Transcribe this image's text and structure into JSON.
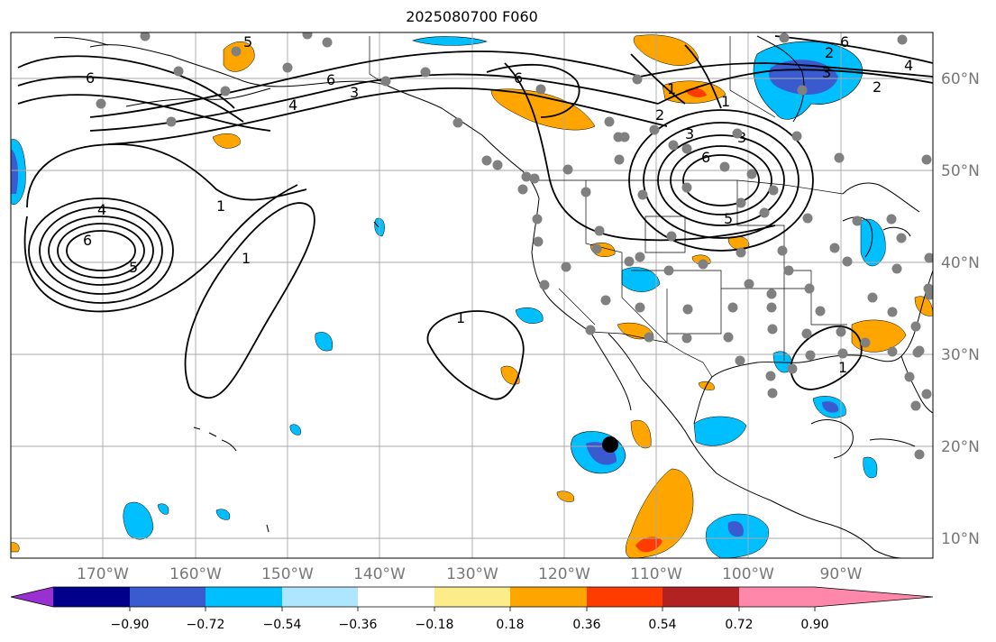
{
  "title": "2025080700 F060",
  "longitude_ticks": [
    "170°W",
    "160°W",
    "150°W",
    "140°W",
    "130°W",
    "120°W",
    "110°W",
    "100°W",
    "90°W"
  ],
  "latitude_ticks": [
    "60°N",
    "50°N",
    "40°N",
    "30°N",
    "20°N",
    "10°N"
  ],
  "colorbar": {
    "labels": [
      "−0.90",
      "−0.72",
      "−0.54",
      "−0.36",
      "−0.18",
      "0.18",
      "0.36",
      "0.54",
      "0.72",
      "0.90"
    ],
    "colors": [
      "#9b30d0",
      "#00008b",
      "#3a5bd0",
      "#00bfff",
      "#aee6ff",
      "#ffffff",
      "#fdec8a",
      "#ffa500",
      "#ff3c00",
      "#b22222",
      "#ff88aa"
    ]
  },
  "contour_labels": [
    "6",
    "5",
    "3",
    "4",
    "1",
    "2",
    "3",
    "6",
    "1",
    "2",
    "3",
    "6",
    "4",
    "2",
    "6",
    "5",
    "4",
    "6",
    "5",
    "1",
    "1",
    "1",
    "1",
    "6",
    "3"
  ],
  "fill_colors": {
    "blue_light": "#aee6ff",
    "blue": "#00bfff",
    "blue_mid": "#3a5bd0",
    "orange": "#ffa500",
    "yellow": "#fdec8a",
    "red": "#ff3c00"
  }
}
